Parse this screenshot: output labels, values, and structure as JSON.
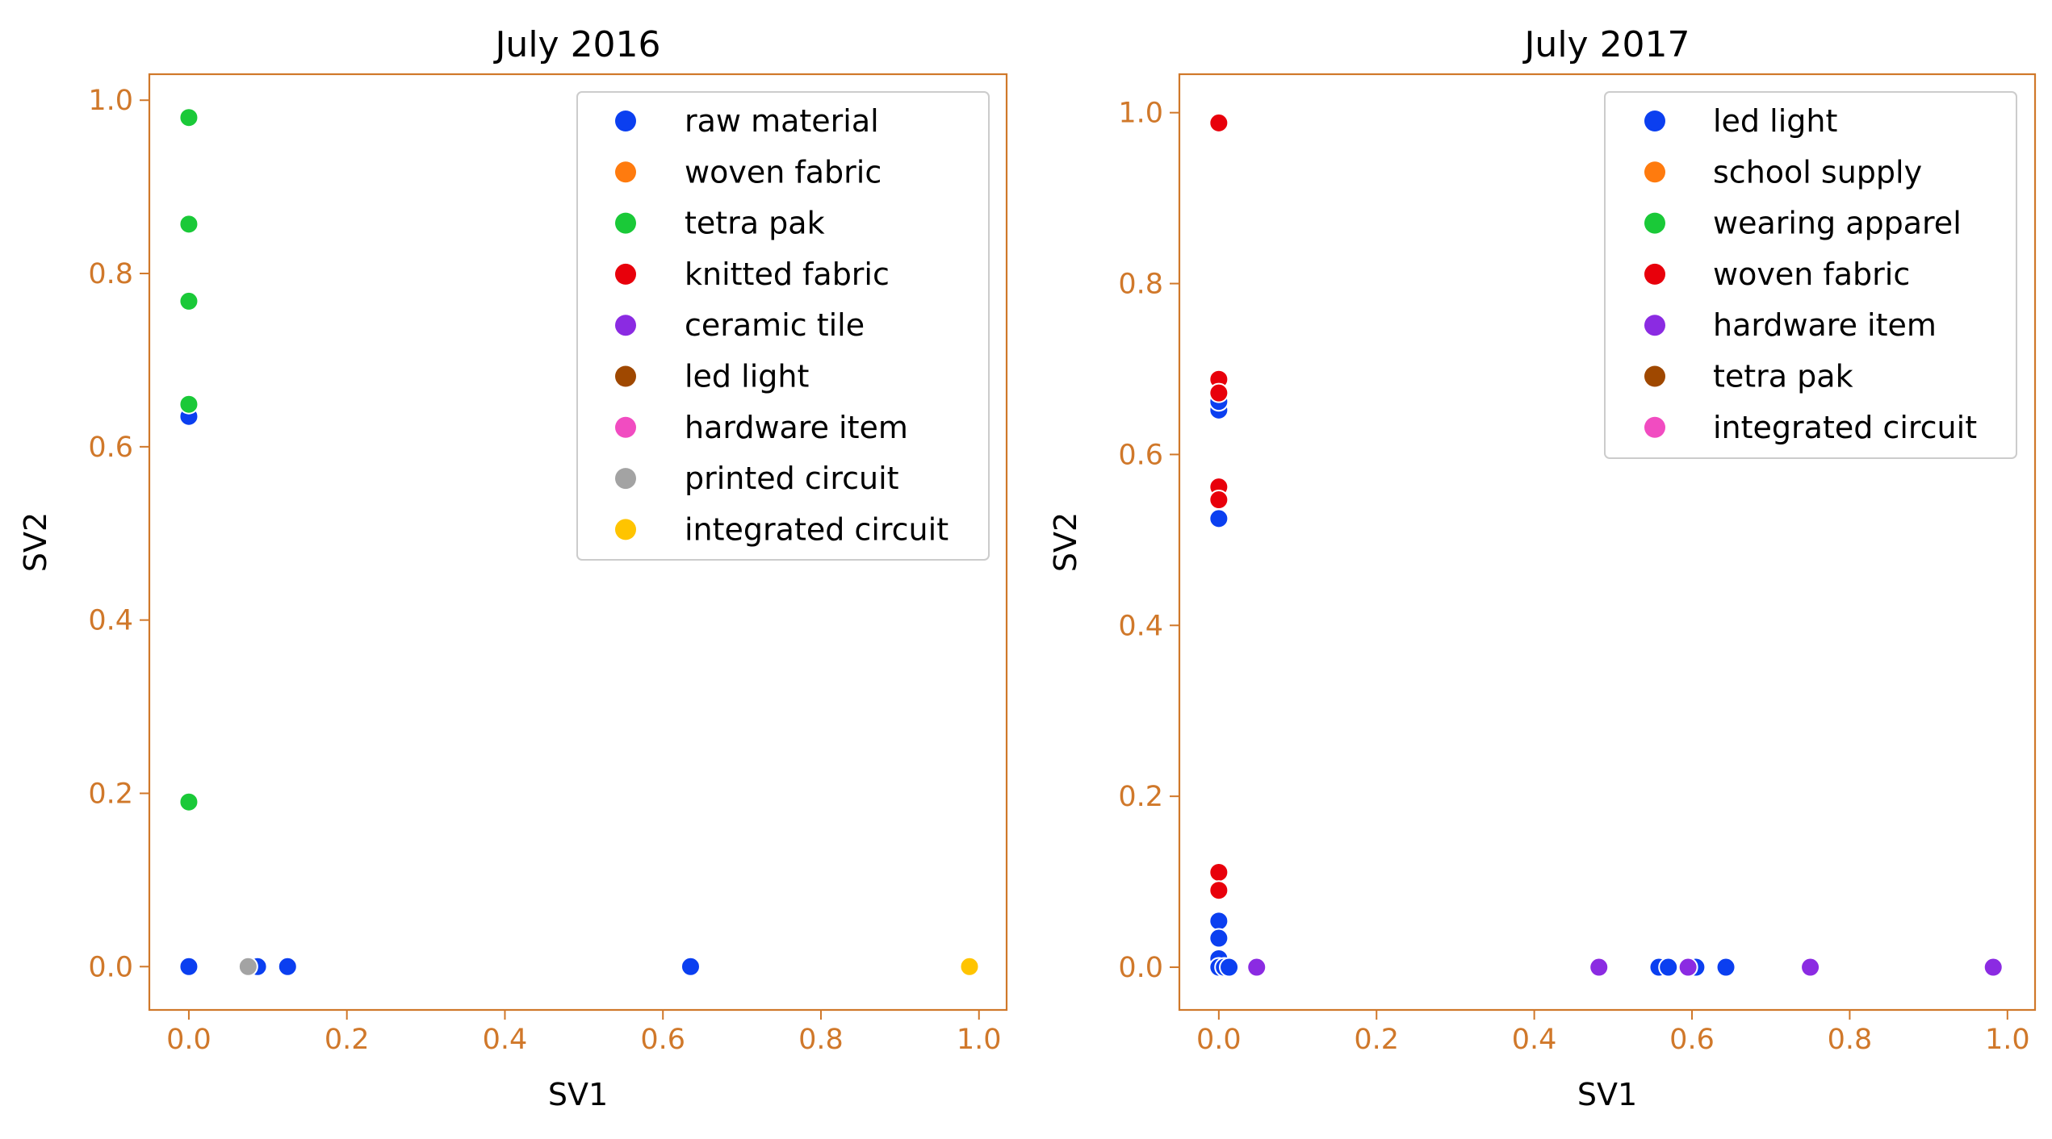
{
  "theme": {
    "axis_color": "#d0782a",
    "text_color": "#000000",
    "marker_edge": "#ffffff"
  },
  "chart_data": [
    {
      "type": "scatter",
      "title": "July 2016",
      "xlabel": "SV1",
      "ylabel": "SV2",
      "xlim": [
        -0.05,
        1.035
      ],
      "ylim": [
        -0.05,
        1.03
      ],
      "xticks": [
        "0.0",
        "0.2",
        "0.4",
        "0.6",
        "0.8",
        "1.0"
      ],
      "yticks": [
        "0.0",
        "0.2",
        "0.4",
        "0.6",
        "0.8",
        "1.0"
      ],
      "grid": false,
      "legend_position": "top-right",
      "series": [
        {
          "name": "raw material",
          "color": "#0b3ff0",
          "points": [
            [
              0.0,
              0.635
            ],
            [
              0.0,
              0.0
            ],
            [
              0.082,
              0.0
            ],
            [
              0.087,
              0.0
            ],
            [
              0.125,
              0.0
            ],
            [
              0.635,
              0.0
            ]
          ]
        },
        {
          "name": "woven fabric",
          "color": "#ff7b0e",
          "points": []
        },
        {
          "name": "tetra pak",
          "color": "#1ac938",
          "points": [
            [
              0.0,
              0.98
            ],
            [
              0.0,
              0.857
            ],
            [
              0.0,
              0.768
            ],
            [
              0.0,
              0.649
            ],
            [
              0.0,
              0.19
            ]
          ]
        },
        {
          "name": "knitted fabric",
          "color": "#e8000b",
          "points": []
        },
        {
          "name": "ceramic tile",
          "color": "#8b2be2",
          "points": []
        },
        {
          "name": "led light",
          "color": "#9f4800",
          "points": []
        },
        {
          "name": "hardware item",
          "color": "#f14cc1",
          "points": []
        },
        {
          "name": "printed circuit",
          "color": "#a3a3a3",
          "points": [
            [
              0.075,
              0.0
            ]
          ]
        },
        {
          "name": "integrated circuit",
          "color": "#ffc400",
          "points": [
            [
              0.988,
              0.0
            ]
          ]
        }
      ]
    },
    {
      "type": "scatter",
      "title": "July 2017",
      "xlabel": "SV1",
      "ylabel": "SV2",
      "xlim": [
        -0.05,
        1.035
      ],
      "ylim": [
        -0.05,
        1.045
      ],
      "xticks": [
        "0.0",
        "0.2",
        "0.4",
        "0.6",
        "0.8",
        "1.0"
      ],
      "yticks": [
        "0.0",
        "0.2",
        "0.4",
        "0.6",
        "0.8",
        "1.0"
      ],
      "grid": false,
      "legend_position": "top-right",
      "series": [
        {
          "name": "led light",
          "color": "#0b3ff0",
          "points": [
            [
              0.0,
              0.652
            ],
            [
              0.0,
              0.662
            ],
            [
              0.0,
              0.525
            ],
            [
              0.0,
              0.054
            ],
            [
              0.0,
              0.034
            ],
            [
              0.0,
              0.01
            ],
            [
              0.0,
              0.0
            ],
            [
              0.007,
              0.0
            ],
            [
              0.013,
              0.0
            ],
            [
              0.558,
              0.0
            ],
            [
              0.57,
              0.0
            ],
            [
              0.605,
              0.0
            ],
            [
              0.643,
              0.0
            ]
          ]
        },
        {
          "name": "school supply",
          "color": "#ff7b0e",
          "points": []
        },
        {
          "name": "wearing apparel",
          "color": "#1ac938",
          "points": []
        },
        {
          "name": "woven fabric",
          "color": "#e8000b",
          "points": [
            [
              0.0,
              0.988
            ],
            [
              0.0,
              0.688
            ],
            [
              0.0,
              0.672
            ],
            [
              0.0,
              0.562
            ],
            [
              0.0,
              0.547
            ],
            [
              0.0,
              0.111
            ],
            [
              0.0,
              0.09
            ]
          ]
        },
        {
          "name": "hardware item",
          "color": "#8b2be2",
          "points": [
            [
              0.048,
              0.0
            ],
            [
              0.482,
              0.0
            ],
            [
              0.595,
              0.0
            ],
            [
              0.75,
              0.0
            ],
            [
              0.982,
              0.0
            ]
          ]
        },
        {
          "name": "tetra pak",
          "color": "#9f4800",
          "points": []
        },
        {
          "name": "integrated circuit",
          "color": "#f14cc1",
          "points": []
        }
      ]
    }
  ]
}
